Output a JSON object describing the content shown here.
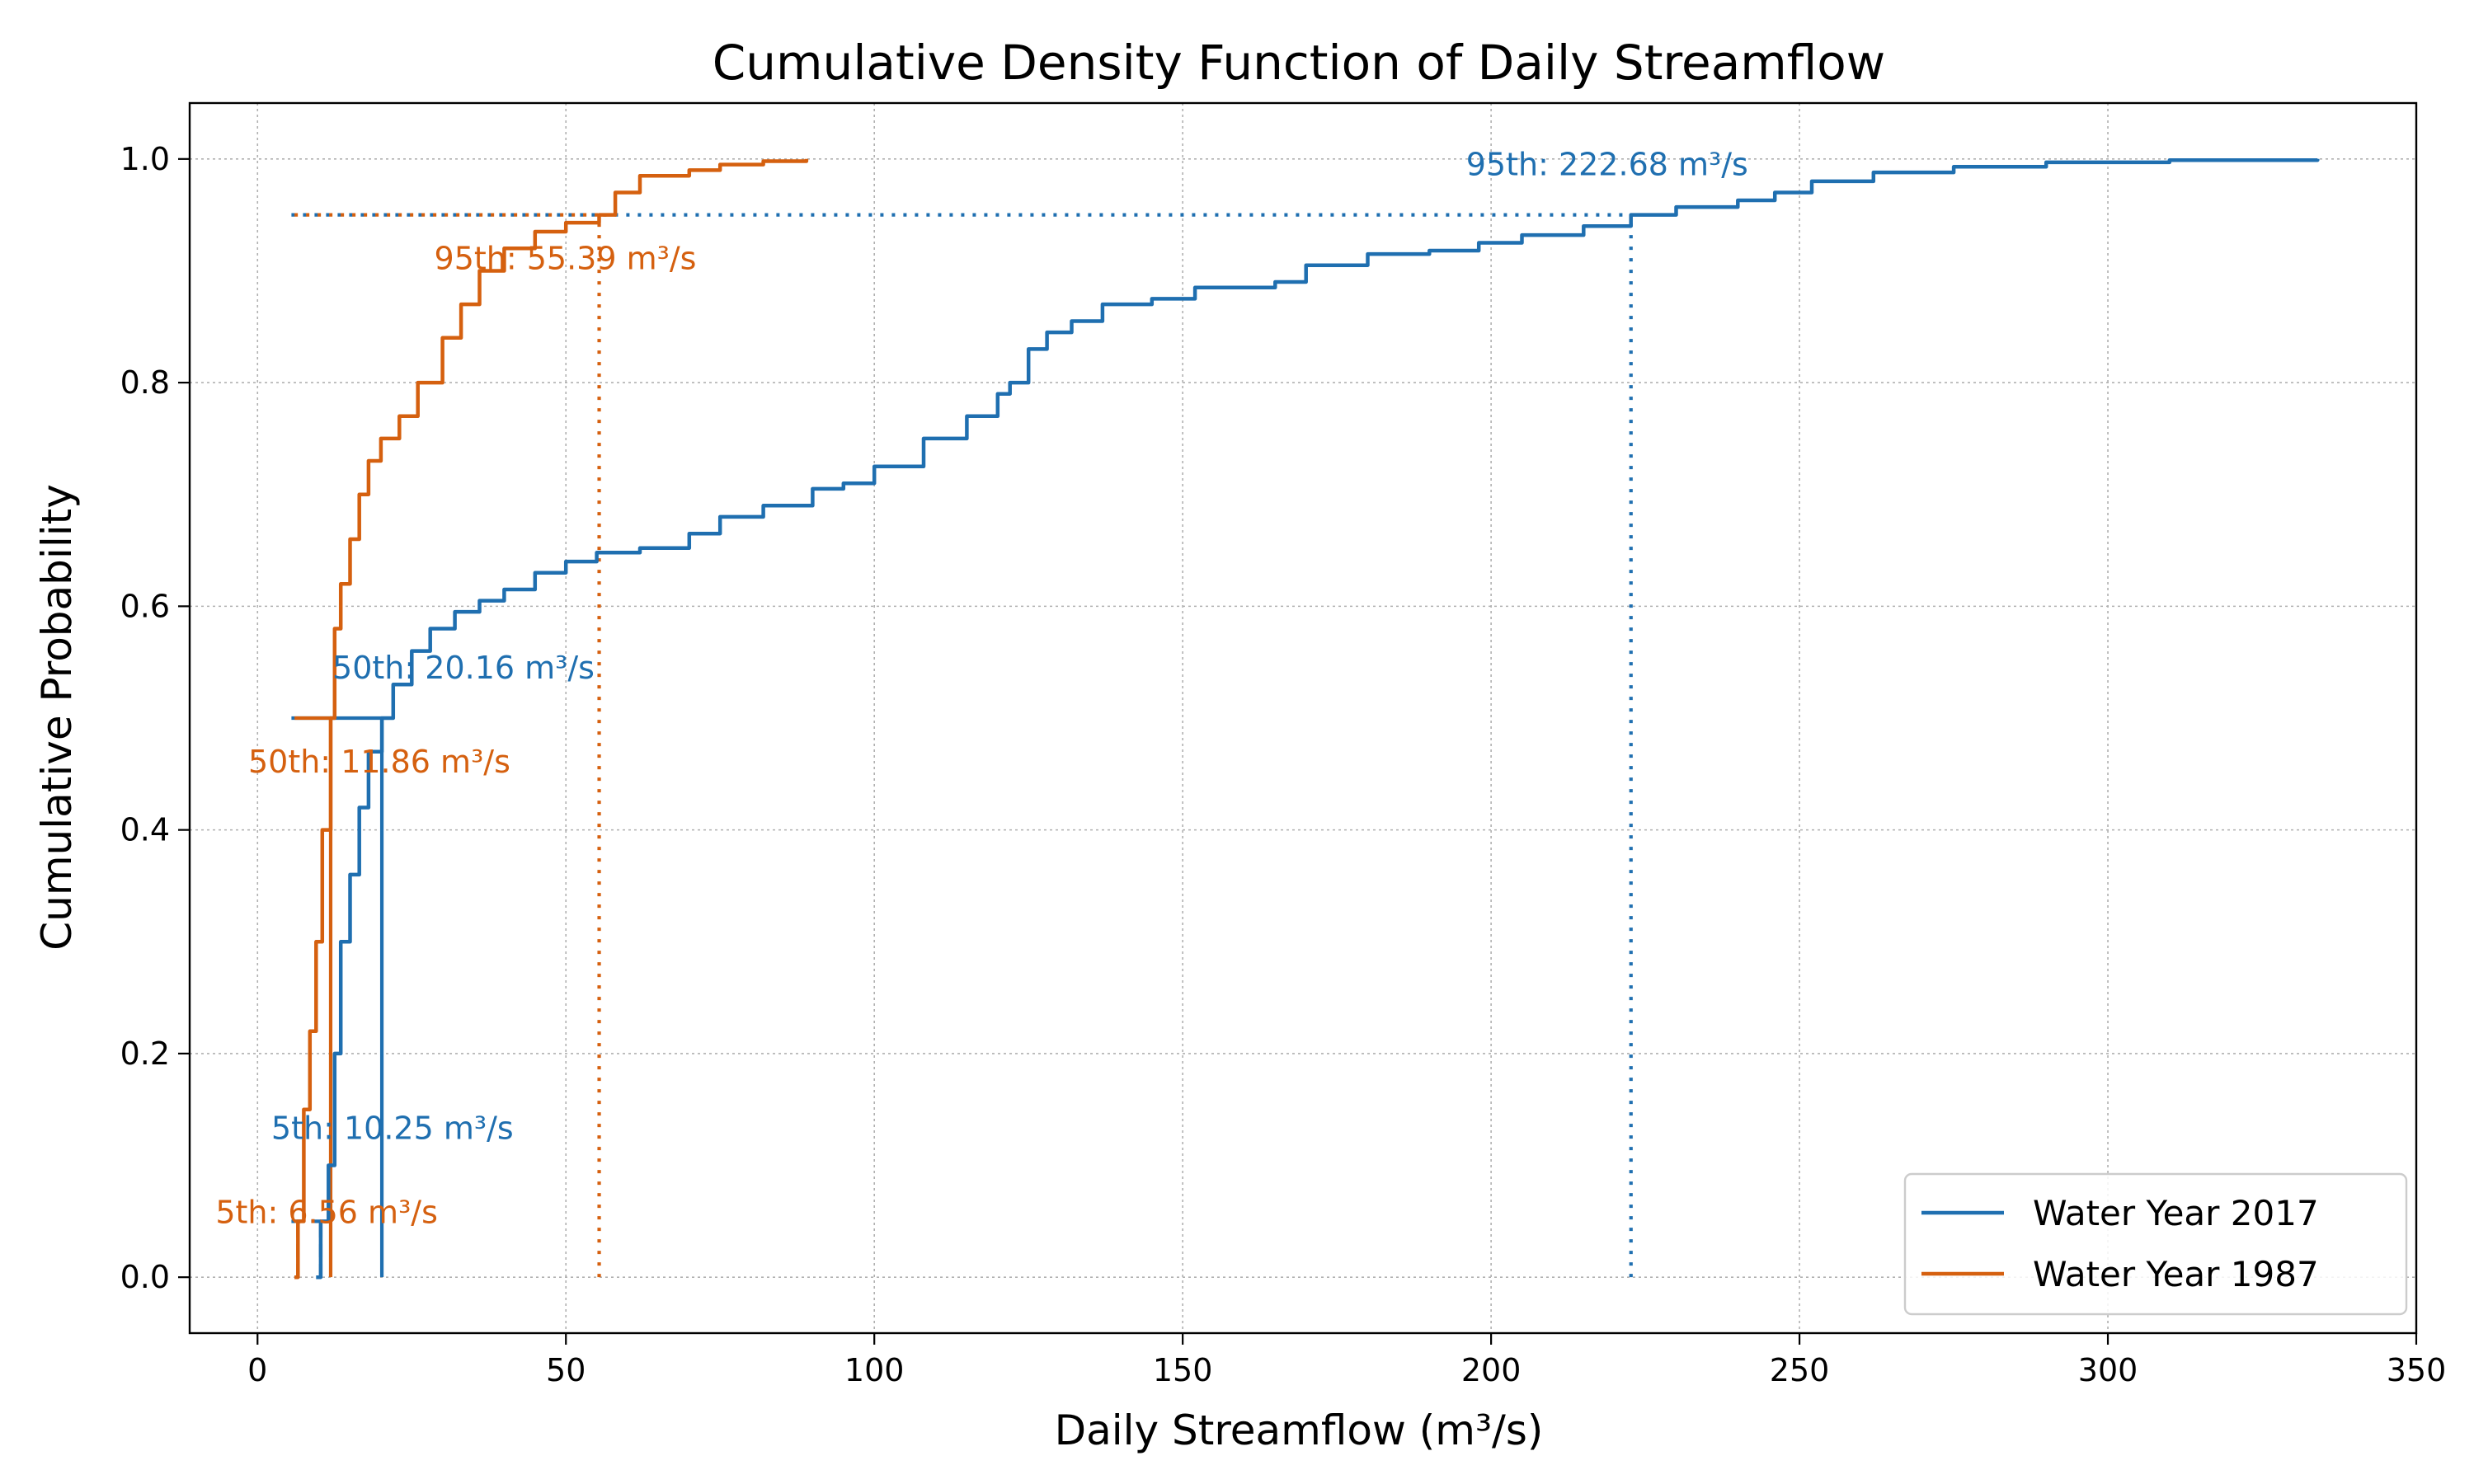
{
  "chart_data": {
    "type": "line",
    "title": "Cumulative Density Function of Daily Streamflow",
    "xlabel": "Daily Streamflow (m³/s)",
    "ylabel": "Cumulative Probability",
    "xlim": [
      -11,
      350
    ],
    "ylim": [
      -0.05,
      1.05
    ],
    "xticks": [
      0,
      50,
      100,
      150,
      200,
      250,
      300,
      350
    ],
    "yticks": [
      0.0,
      0.2,
      0.4,
      0.6,
      0.8,
      1.0
    ],
    "xtick_labels": [
      "0",
      "50",
      "100",
      "150",
      "200",
      "250",
      "300",
      "350"
    ],
    "ytick_labels": [
      "0.0",
      "0.2",
      "0.4",
      "0.6",
      "0.8",
      "1.0"
    ],
    "grid": true,
    "legend_position": "lower-right",
    "series": [
      {
        "name": "Water Year 2017",
        "color": "#1f6fb0",
        "points": [
          [
            9.5,
            0.0
          ],
          [
            10.25,
            0.05
          ],
          [
            11.5,
            0.1
          ],
          [
            12.5,
            0.2
          ],
          [
            13.5,
            0.3
          ],
          [
            15,
            0.36
          ],
          [
            16.5,
            0.42
          ],
          [
            18,
            0.47
          ],
          [
            20.16,
            0.5
          ],
          [
            22,
            0.53
          ],
          [
            25,
            0.56
          ],
          [
            28,
            0.58
          ],
          [
            32,
            0.595
          ],
          [
            36,
            0.605
          ],
          [
            40,
            0.615
          ],
          [
            45,
            0.63
          ],
          [
            50,
            0.64
          ],
          [
            55,
            0.648
          ],
          [
            62,
            0.652
          ],
          [
            70,
            0.665
          ],
          [
            75,
            0.68
          ],
          [
            82,
            0.69
          ],
          [
            90,
            0.705
          ],
          [
            95,
            0.71
          ],
          [
            100,
            0.725
          ],
          [
            108,
            0.75
          ],
          [
            115,
            0.77
          ],
          [
            120,
            0.79
          ],
          [
            122,
            0.8
          ],
          [
            125,
            0.83
          ],
          [
            128,
            0.845
          ],
          [
            132,
            0.855
          ],
          [
            137,
            0.87
          ],
          [
            145,
            0.875
          ],
          [
            152,
            0.885
          ],
          [
            165,
            0.89
          ],
          [
            170,
            0.905
          ],
          [
            180,
            0.915
          ],
          [
            190,
            0.918
          ],
          [
            198,
            0.925
          ],
          [
            205,
            0.932
          ],
          [
            215,
            0.94
          ],
          [
            222.68,
            0.95
          ],
          [
            230,
            0.957
          ],
          [
            240,
            0.963
          ],
          [
            246,
            0.97
          ],
          [
            252,
            0.98
          ],
          [
            262,
            0.988
          ],
          [
            275,
            0.993
          ],
          [
            290,
            0.997
          ],
          [
            310,
            0.999
          ],
          [
            334,
            1.0
          ]
        ]
      },
      {
        "name": "Water Year 1987",
        "color": "#d5600f",
        "points": [
          [
            6.0,
            0.0
          ],
          [
            6.56,
            0.05
          ],
          [
            7.5,
            0.15
          ],
          [
            8.5,
            0.22
          ],
          [
            9.5,
            0.3
          ],
          [
            10.5,
            0.4
          ],
          [
            11.86,
            0.5
          ],
          [
            12.5,
            0.58
          ],
          [
            13.5,
            0.62
          ],
          [
            15,
            0.66
          ],
          [
            16.5,
            0.7
          ],
          [
            18,
            0.73
          ],
          [
            20,
            0.75
          ],
          [
            23,
            0.77
          ],
          [
            26,
            0.8
          ],
          [
            30,
            0.84
          ],
          [
            33,
            0.87
          ],
          [
            36,
            0.9
          ],
          [
            40,
            0.92
          ],
          [
            45,
            0.935
          ],
          [
            50,
            0.943
          ],
          [
            55.39,
            0.95
          ],
          [
            58,
            0.97
          ],
          [
            62,
            0.985
          ],
          [
            70,
            0.99
          ],
          [
            75,
            0.995
          ],
          [
            82,
            0.998
          ],
          [
            89,
            1.0
          ]
        ]
      }
    ],
    "percentile_markers": [
      {
        "series": 0,
        "percentile": 5,
        "value": 10.25,
        "style": "dashed",
        "label": "5th: 10.25 m³/s"
      },
      {
        "series": 0,
        "percentile": 50,
        "value": 20.16,
        "style": "solid",
        "label": "50th: 20.16 m³/s"
      },
      {
        "series": 0,
        "percentile": 95,
        "value": 222.68,
        "style": "dotted",
        "label": "95th: 222.68 m³/s"
      },
      {
        "series": 1,
        "percentile": 5,
        "value": 6.56,
        "style": "dashed",
        "label": "5th: 6.56 m³/s"
      },
      {
        "series": 1,
        "percentile": 50,
        "value": 11.86,
        "style": "solid",
        "label": "50th: 11.86 m³/s"
      },
      {
        "series": 1,
        "percentile": 95,
        "value": 55.39,
        "style": "dotted",
        "label": "95th: 55.39 m³/s"
      }
    ]
  }
}
